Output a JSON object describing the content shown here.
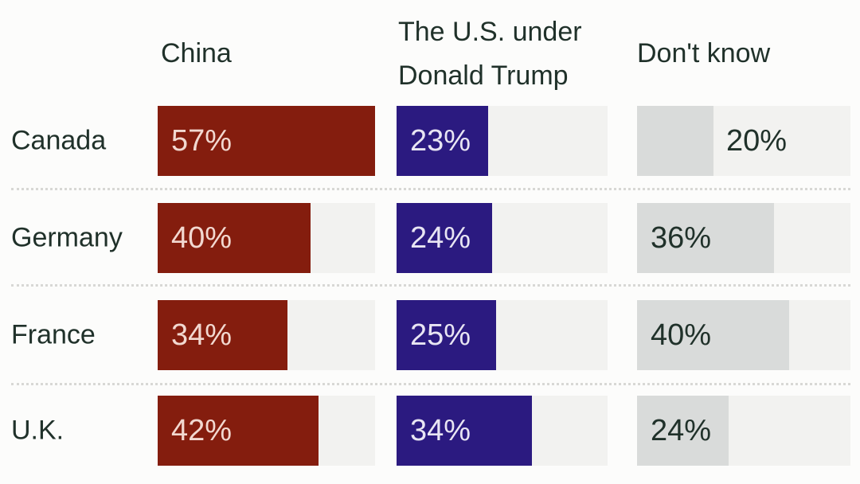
{
  "chart_data": {
    "type": "bar",
    "orientation": "horizontal",
    "title": "",
    "categories": [
      "Canada",
      "Germany",
      "France",
      "U.K."
    ],
    "series": [
      {
        "name": "China",
        "values": [
          57,
          40,
          34,
          42
        ],
        "labels": [
          "57%",
          "40%",
          "34%",
          "42%"
        ],
        "bar_color": "#841D0E",
        "label_color": "#F2D8D0"
      },
      {
        "name": "The U.S. under Donald Trump",
        "values": [
          23,
          24,
          25,
          34
        ],
        "labels": [
          "23%",
          "24%",
          "25%",
          "34%"
        ],
        "bar_color": "#2B1A80",
        "label_color": "#E8E5F3"
      },
      {
        "name": "Don't know",
        "values": [
          20,
          36,
          40,
          24
        ],
        "labels": [
          "20%",
          "36%",
          "40%",
          "24%"
        ],
        "bar_color": "#D9DBDA",
        "label_color": "#20312A"
      }
    ],
    "unit": "%",
    "xlim": [
      0,
      57
    ],
    "grid": false,
    "legend_position": "column-headers-top"
  },
  "style": {
    "background": "#FCFCFB",
    "track_color": "#F2F2F0",
    "header_text_color": "#20312A",
    "row_label_color": "#20312A",
    "separator_color": "#D8D8D5",
    "outside_label_color": "#20312A"
  }
}
